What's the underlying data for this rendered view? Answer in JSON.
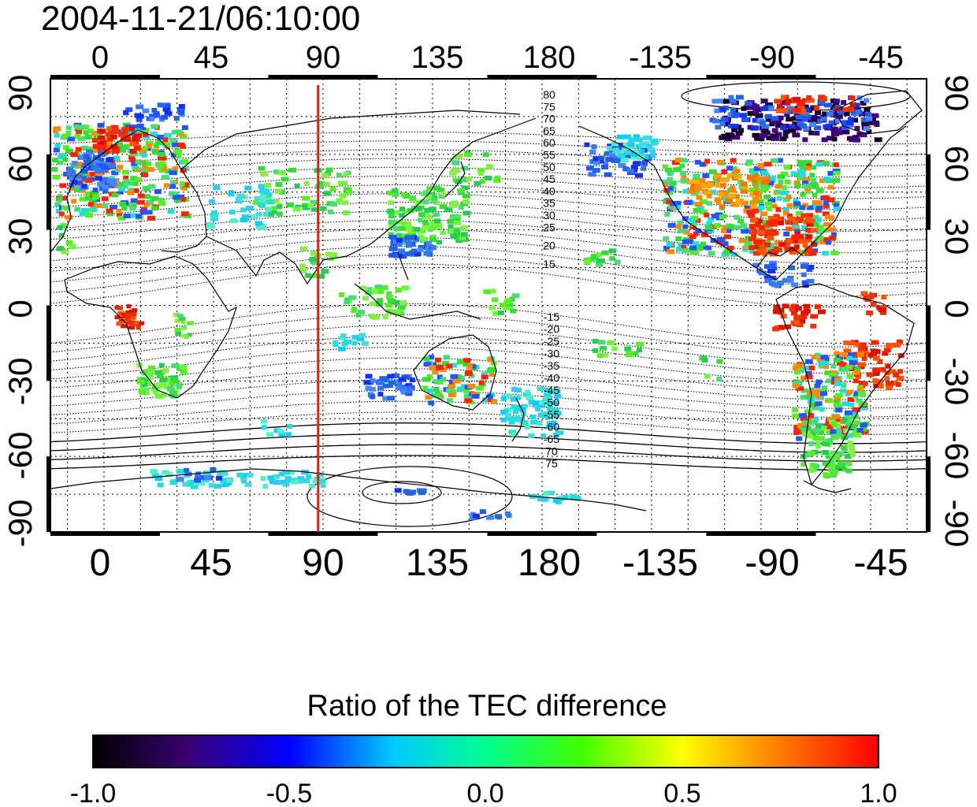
{
  "title": "2004-11-21/06:10:00",
  "lon_ticks": [
    "0",
    "45",
    "90",
    "135",
    "180",
    "-135",
    "-90",
    "-45"
  ],
  "lat_ticks_left": [
    "90",
    "60",
    "30",
    "0",
    "-30",
    "-60",
    "-90"
  ],
  "lat_ticks_right": [
    "90",
    "60",
    "30",
    "0",
    "-30",
    "-60",
    "-90"
  ],
  "dip_labels_north": [
    "80",
    "75",
    "70",
    "65",
    "60",
    "55",
    "50",
    "45",
    "40",
    "35",
    "30",
    "25",
    "20",
    "15"
  ],
  "dip_labels_south": [
    "-15",
    "-20",
    "-25",
    "-30",
    "-35",
    "-40",
    "-45",
    "-50",
    "-55",
    "-60",
    "-65",
    "70",
    "75"
  ],
  "marker_longitude": 88,
  "marker_color": "#e02010",
  "colorbar": {
    "label": "Ratio of the TEC difference",
    "tick_labels": [
      "-1.0",
      "-0.5",
      "0.0",
      "0.5",
      "1.0"
    ],
    "range": [
      -1.0,
      1.0
    ],
    "colors": [
      "#000000",
      "#3a0070",
      "#0000ff",
      "#00ffff",
      "#00ff00",
      "#ffff00",
      "#ff8000",
      "#ff0000"
    ]
  }
}
